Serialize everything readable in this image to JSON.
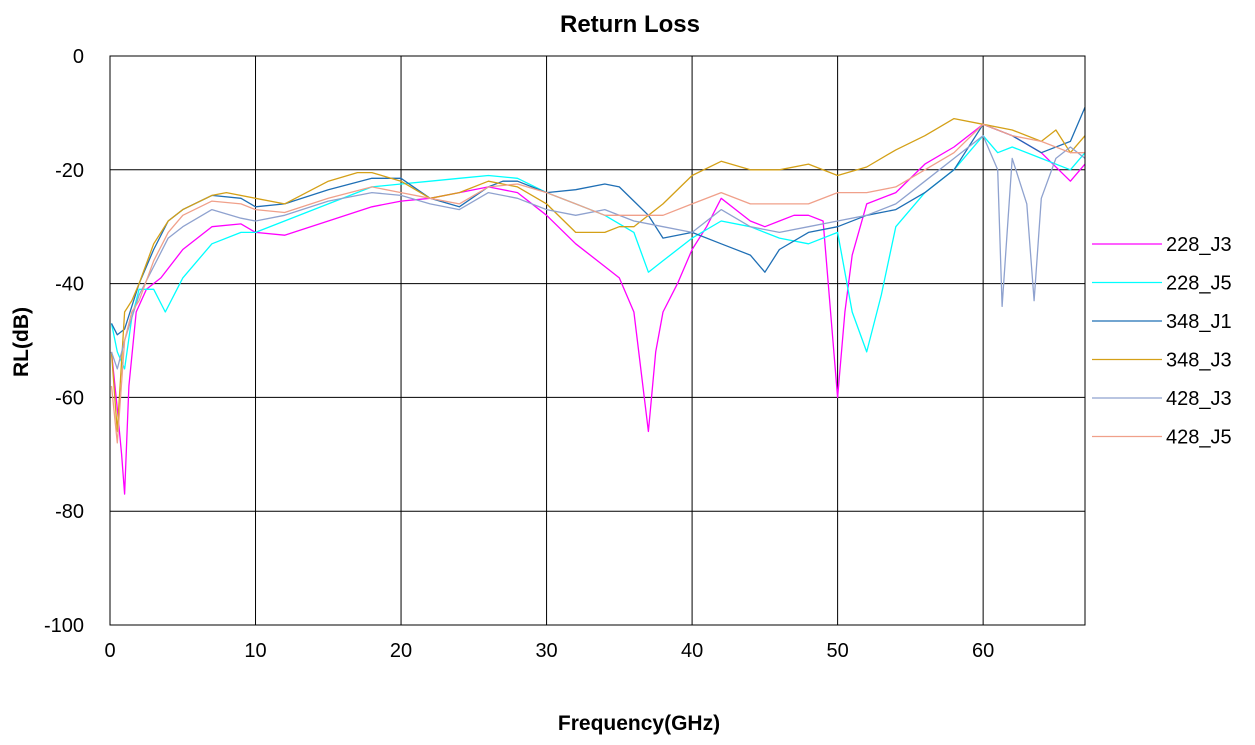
{
  "chart_data": {
    "type": "line",
    "title": "Return Loss",
    "xlabel": "Frequency(GHz)",
    "ylabel": "RL(dB)",
    "xlim": [
      0,
      67
    ],
    "ylim": [
      -100,
      0
    ],
    "xticks": [
      0,
      10,
      20,
      30,
      40,
      50,
      60
    ],
    "yticks": [
      0,
      -20,
      -40,
      -60,
      -80,
      -100
    ],
    "grid": true,
    "legend_position": "right",
    "series": [
      {
        "name": "228_J3",
        "color": "#ff00ff",
        "x": [
          0.1,
          0.5,
          0.8,
          1.0,
          1.3,
          1.8,
          2.5,
          3.5,
          5,
          7,
          9,
          10,
          12,
          15,
          18,
          20,
          22,
          24,
          26,
          28,
          30,
          32,
          34,
          35,
          36,
          37,
          37.5,
          38,
          39,
          40,
          41,
          42,
          43,
          44,
          45,
          46,
          47,
          48,
          49,
          50,
          50.5,
          51,
          52,
          54,
          56,
          58,
          60,
          62,
          64,
          66,
          67
        ],
        "y": [
          -52,
          -62,
          -70,
          -77,
          -58,
          -45,
          -41,
          -39,
          -34,
          -30,
          -29.5,
          -31,
          -31.5,
          -29,
          -26.5,
          -25.5,
          -25,
          -24,
          -23,
          -24,
          -28,
          -33,
          -37,
          -39,
          -45,
          -66,
          -52,
          -45,
          -40,
          -34,
          -30,
          -25,
          -27,
          -29,
          -30,
          -29,
          -28,
          -28,
          -29,
          -60,
          -45,
          -35,
          -26,
          -24,
          -19,
          -16,
          -12,
          -14,
          -17,
          -22,
          -19
        ]
      },
      {
        "name": "228_J5",
        "color": "#00ffff",
        "x": [
          0.1,
          0.5,
          1.0,
          1.5,
          2.0,
          3.0,
          3.8,
          5,
          7,
          9,
          10,
          12,
          15,
          18,
          20,
          22,
          24,
          26,
          28,
          30,
          32,
          34,
          36,
          37,
          38,
          40,
          42,
          44,
          46,
          48,
          50,
          51,
          52,
          53,
          54,
          56,
          58,
          60,
          61,
          62,
          64,
          66,
          67
        ],
        "y": [
          -47,
          -52,
          -55,
          -46,
          -41,
          -41,
          -45,
          -39,
          -33,
          -31,
          -31,
          -29,
          -26,
          -23,
          -22.5,
          -22,
          -21.5,
          -21,
          -21.5,
          -24,
          -26,
          -28,
          -31,
          -38,
          -36,
          -32,
          -29,
          -30,
          -32,
          -33,
          -31,
          -45,
          -52,
          -42,
          -30,
          -24,
          -20,
          -14,
          -17,
          -16,
          -18,
          -20,
          -17
        ]
      },
      {
        "name": "348_J1",
        "color": "#1f6fb5",
        "x": [
          0.1,
          0.5,
          1.0,
          1.5,
          2,
          3,
          4,
          5,
          7,
          9,
          10,
          12,
          15,
          18,
          20,
          22,
          24,
          26,
          27,
          28,
          30,
          32,
          34,
          35,
          36,
          37,
          38,
          40,
          42,
          44,
          45,
          46,
          48,
          50,
          52,
          54,
          56,
          58,
          60,
          62,
          64,
          66,
          67
        ],
        "y": [
          -47,
          -49,
          -48,
          -44,
          -40,
          -34,
          -29,
          -27,
          -24.5,
          -25,
          -26.5,
          -26,
          -23.5,
          -21.5,
          -21.5,
          -25,
          -26.5,
          -23,
          -22,
          -22,
          -24,
          -23.5,
          -22.5,
          -23,
          -25.5,
          -28,
          -32,
          -31,
          -33,
          -35,
          -38,
          -34,
          -31,
          -30,
          -28,
          -27,
          -24,
          -20,
          -12,
          -14,
          -17,
          -15,
          -9
        ]
      },
      {
        "name": "348_J3",
        "color": "#d4a017",
        "x": [
          0.1,
          0.5,
          1.0,
          1.5,
          2,
          3,
          4,
          5,
          7,
          8,
          10,
          12,
          15,
          17,
          18,
          20,
          22,
          24,
          26,
          28,
          30,
          32,
          34,
          35,
          36,
          38,
          40,
          42,
          44,
          46,
          48,
          50,
          52,
          54,
          56,
          58,
          60,
          62,
          64,
          65,
          66,
          67
        ],
        "y": [
          -52,
          -66,
          -45,
          -43,
          -40,
          -33,
          -29,
          -27,
          -24.5,
          -24,
          -25,
          -26,
          -22,
          -20.5,
          -20.5,
          -22,
          -25,
          -24,
          -22,
          -23,
          -26,
          -31,
          -31,
          -30,
          -30,
          -26,
          -21,
          -18.5,
          -20,
          -20,
          -19,
          -21,
          -19.5,
          -16.5,
          -14,
          -11,
          -12,
          -13,
          -15,
          -13,
          -17,
          -14
        ]
      },
      {
        "name": "428_J3",
        "color": "#8fa2cf",
        "x": [
          0.1,
          0.5,
          1.0,
          1.5,
          2,
          3,
          4,
          5,
          7,
          9,
          10,
          12,
          15,
          18,
          20,
          22,
          24,
          26,
          28,
          30,
          32,
          34,
          36,
          38,
          40,
          42,
          44,
          46,
          48,
          50,
          52,
          54,
          56,
          58,
          60,
          61,
          61.3,
          62,
          63,
          63.5,
          64,
          65,
          66,
          67
        ],
        "y": [
          -52,
          -55,
          -50,
          -46,
          -42,
          -37,
          -32,
          -30,
          -27,
          -28.5,
          -29,
          -28,
          -25.5,
          -24,
          -24.5,
          -26,
          -27,
          -24,
          -25,
          -27,
          -28,
          -27,
          -29,
          -30,
          -31,
          -27,
          -30,
          -31,
          -30,
          -29,
          -28,
          -26,
          -22,
          -18,
          -14,
          -20,
          -44,
          -18,
          -26,
          -43,
          -25,
          -18,
          -16,
          -18
        ]
      },
      {
        "name": "428_J5",
        "color": "#f0a08a",
        "x": [
          0.1,
          0.5,
          1.0,
          1.5,
          2,
          3,
          4,
          5,
          7,
          9,
          10,
          12,
          15,
          18,
          20,
          22,
          24,
          26,
          28,
          30,
          32,
          34,
          36,
          38,
          40,
          42,
          44,
          46,
          48,
          50,
          52,
          54,
          56,
          58,
          60,
          62,
          64,
          66,
          67
        ],
        "y": [
          -58,
          -68,
          -50,
          -45,
          -43,
          -36,
          -31,
          -28,
          -25.5,
          -26,
          -27,
          -27.5,
          -25,
          -23,
          -24,
          -25,
          -26,
          -23,
          -22.5,
          -24,
          -26,
          -28,
          -28,
          -28,
          -26,
          -24,
          -26,
          -26,
          -26,
          -24,
          -24,
          -23,
          -20,
          -17,
          -12,
          -14,
          -15,
          -17,
          -17
        ]
      }
    ]
  }
}
